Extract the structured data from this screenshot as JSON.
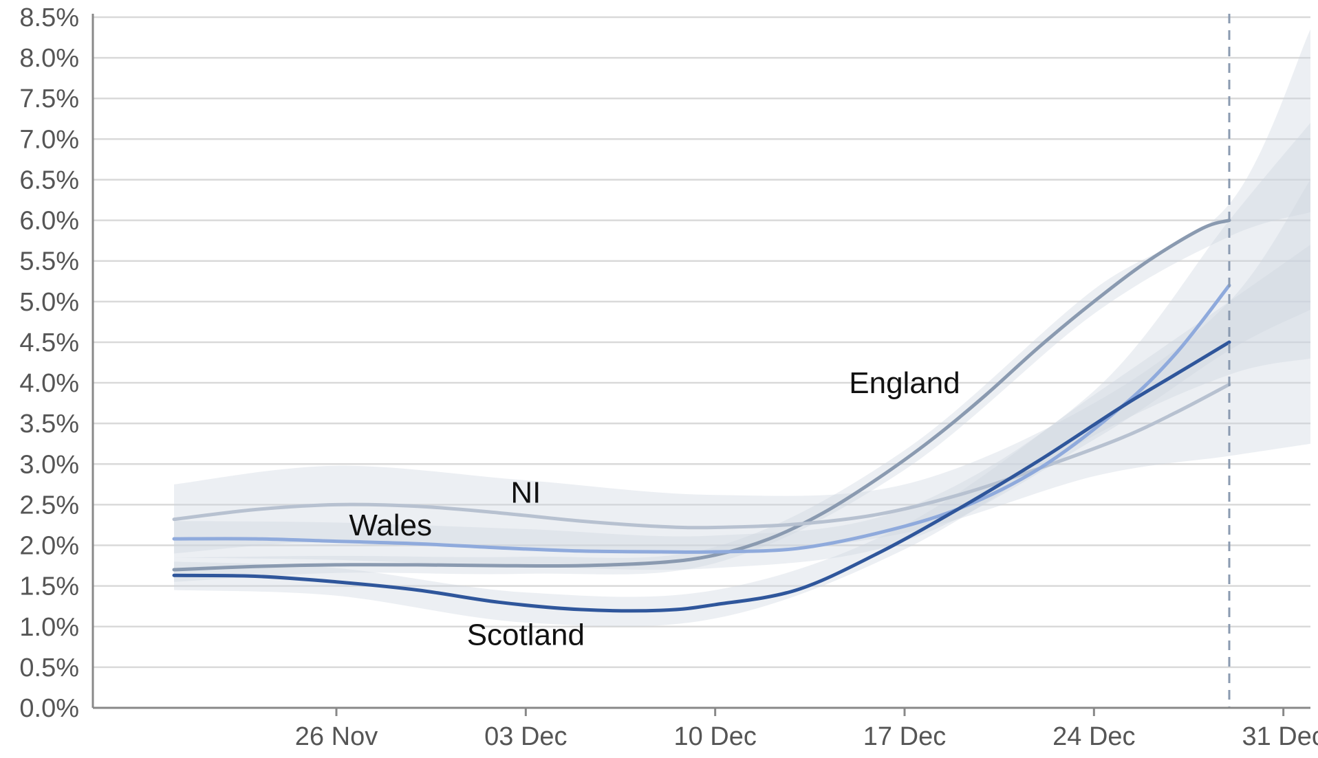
{
  "chart_data": {
    "type": "line",
    "title": "",
    "xlabel": "",
    "ylabel": "",
    "x_start": "2021-11-17",
    "x_end": "2022-01-01",
    "reference_date": "2021-12-29",
    "x_ticks": [
      {
        "date": "2021-11-26",
        "label": "26 Nov"
      },
      {
        "date": "2021-12-03",
        "label": "03 Dec"
      },
      {
        "date": "2021-12-10",
        "label": "10 Dec"
      },
      {
        "date": "2021-12-17",
        "label": "17 Dec"
      },
      {
        "date": "2021-12-24",
        "label": "24 Dec"
      },
      {
        "date": "2021-12-31",
        "label": "31 Dec"
      }
    ],
    "ylim": [
      0,
      8.5
    ],
    "y_ticks": [
      {
        "value": 0.0,
        "label": "0.0%"
      },
      {
        "value": 0.5,
        "label": "0.5%"
      },
      {
        "value": 1.0,
        "label": "1.0%"
      },
      {
        "value": 1.5,
        "label": "1.5%"
      },
      {
        "value": 2.0,
        "label": "2.0%"
      },
      {
        "value": 2.5,
        "label": "2.5%"
      },
      {
        "value": 3.0,
        "label": "3.0%"
      },
      {
        "value": 3.5,
        "label": "3.5%"
      },
      {
        "value": 4.0,
        "label": "4.0%"
      },
      {
        "value": 4.5,
        "label": "4.5%"
      },
      {
        "value": 5.0,
        "label": "5.0%"
      },
      {
        "value": 5.5,
        "label": "5.5%"
      },
      {
        "value": 6.0,
        "label": "6.0%"
      },
      {
        "value": 6.5,
        "label": "6.5%"
      },
      {
        "value": 7.0,
        "label": "7.0%"
      },
      {
        "value": 7.5,
        "label": "7.5%"
      },
      {
        "value": 8.0,
        "label": "8.0%"
      },
      {
        "value": 8.5,
        "label": "8.5%"
      }
    ],
    "grid": true,
    "series": [
      {
        "name": "England",
        "color": "#8a9ab0",
        "points": [
          [
            "2021-11-20",
            1.7
          ],
          [
            "2021-11-23",
            1.74
          ],
          [
            "2021-11-26",
            1.76
          ],
          [
            "2021-11-29",
            1.76
          ],
          [
            "2021-12-02",
            1.75
          ],
          [
            "2021-12-05",
            1.75
          ],
          [
            "2021-12-08",
            1.79
          ],
          [
            "2021-12-10",
            1.88
          ],
          [
            "2021-12-12",
            2.08
          ],
          [
            "2021-12-14",
            2.4
          ],
          [
            "2021-12-16",
            2.82
          ],
          [
            "2021-12-18",
            3.3
          ],
          [
            "2021-12-20",
            3.85
          ],
          [
            "2021-12-22",
            4.45
          ],
          [
            "2021-12-24",
            5.0
          ],
          [
            "2021-12-26",
            5.5
          ],
          [
            "2021-12-28",
            5.9
          ],
          [
            "2021-12-29",
            6.0
          ]
        ],
        "band": [
          [
            "2021-11-20",
            1.55,
            1.85
          ],
          [
            "2021-11-26",
            1.66,
            1.87
          ],
          [
            "2021-12-03",
            1.65,
            1.86
          ],
          [
            "2021-12-10",
            1.78,
            1.98
          ],
          [
            "2021-12-17",
            2.93,
            3.17
          ],
          [
            "2021-12-24",
            4.85,
            5.15
          ],
          [
            "2021-12-29",
            5.8,
            6.2
          ],
          [
            "2022-01-01",
            6.1,
            8.35
          ]
        ]
      },
      {
        "name": "NI",
        "color": "#b7c1d0",
        "points": [
          [
            "2021-11-20",
            2.32
          ],
          [
            "2021-11-23",
            2.44
          ],
          [
            "2021-11-26",
            2.5
          ],
          [
            "2021-11-29",
            2.48
          ],
          [
            "2021-12-02",
            2.4
          ],
          [
            "2021-12-05",
            2.3
          ],
          [
            "2021-12-08",
            2.23
          ],
          [
            "2021-12-10",
            2.22
          ],
          [
            "2021-12-13",
            2.26
          ],
          [
            "2021-12-16",
            2.38
          ],
          [
            "2021-12-19",
            2.62
          ],
          [
            "2021-12-22",
            2.95
          ],
          [
            "2021-12-25",
            3.32
          ],
          [
            "2021-12-27",
            3.63
          ],
          [
            "2021-12-29",
            3.98
          ]
        ],
        "band": [
          [
            "2021-11-20",
            1.9,
            2.75
          ],
          [
            "2021-11-26",
            2.05,
            2.98
          ],
          [
            "2021-12-03",
            1.95,
            2.8
          ],
          [
            "2021-12-10",
            1.9,
            2.62
          ],
          [
            "2021-12-17",
            2.15,
            2.75
          ],
          [
            "2021-12-24",
            2.85,
            3.75
          ],
          [
            "2021-12-29",
            3.1,
            5.0
          ],
          [
            "2022-01-01",
            3.25,
            6.5
          ]
        ]
      },
      {
        "name": "Wales",
        "color": "#8faadc",
        "points": [
          [
            "2021-11-20",
            2.08
          ],
          [
            "2021-11-23",
            2.08
          ],
          [
            "2021-11-26",
            2.05
          ],
          [
            "2021-11-29",
            2.02
          ],
          [
            "2021-12-02",
            1.97
          ],
          [
            "2021-12-05",
            1.93
          ],
          [
            "2021-12-08",
            1.92
          ],
          [
            "2021-12-10",
            1.92
          ],
          [
            "2021-12-13",
            1.96
          ],
          [
            "2021-12-16",
            2.15
          ],
          [
            "2021-12-19",
            2.45
          ],
          [
            "2021-12-22",
            2.95
          ],
          [
            "2021-12-25",
            3.7
          ],
          [
            "2021-12-27",
            4.35
          ],
          [
            "2021-12-29",
            5.2
          ]
        ],
        "band": [
          [
            "2021-11-20",
            1.85,
            2.3
          ],
          [
            "2021-11-26",
            1.82,
            2.28
          ],
          [
            "2021-12-03",
            1.74,
            2.2
          ],
          [
            "2021-12-10",
            1.72,
            2.12
          ],
          [
            "2021-12-17",
            2.05,
            2.45
          ],
          [
            "2021-12-24",
            3.3,
            3.9
          ],
          [
            "2021-12-29",
            4.4,
            6.0
          ],
          [
            "2022-01-01",
            4.9,
            7.2
          ]
        ]
      },
      {
        "name": "Scotland",
        "color": "#2f569b",
        "points": [
          [
            "2021-11-20",
            1.63
          ],
          [
            "2021-11-23",
            1.62
          ],
          [
            "2021-11-26",
            1.55
          ],
          [
            "2021-11-29",
            1.45
          ],
          [
            "2021-12-02",
            1.3
          ],
          [
            "2021-12-05",
            1.21
          ],
          [
            "2021-12-08",
            1.2
          ],
          [
            "2021-12-10",
            1.27
          ],
          [
            "2021-12-13",
            1.45
          ],
          [
            "2021-12-16",
            1.9
          ],
          [
            "2021-12-19",
            2.45
          ],
          [
            "2021-12-22",
            3.05
          ],
          [
            "2021-12-25",
            3.7
          ],
          [
            "2021-12-27",
            4.1
          ],
          [
            "2021-12-29",
            4.5
          ]
        ],
        "band": [
          [
            "2021-11-20",
            1.45,
            1.8
          ],
          [
            "2021-11-26",
            1.38,
            1.72
          ],
          [
            "2021-12-03",
            1.05,
            1.42
          ],
          [
            "2021-12-10",
            1.1,
            1.45
          ],
          [
            "2021-12-17",
            1.95,
            2.25
          ],
          [
            "2021-12-24",
            3.35,
            3.85
          ],
          [
            "2021-12-29",
            4.1,
            5.0
          ],
          [
            "2022-01-01",
            4.3,
            5.7
          ]
        ]
      }
    ],
    "annotations": [
      {
        "text": "England",
        "date": "2021-12-17",
        "value": 4.0
      },
      {
        "text": "NI",
        "date": "2021-12-03",
        "value": 2.65
      },
      {
        "text": "Wales",
        "date": "2021-11-28",
        "value": 2.25
      },
      {
        "text": "Scotland",
        "date": "2021-12-03",
        "value": 0.9
      }
    ]
  }
}
